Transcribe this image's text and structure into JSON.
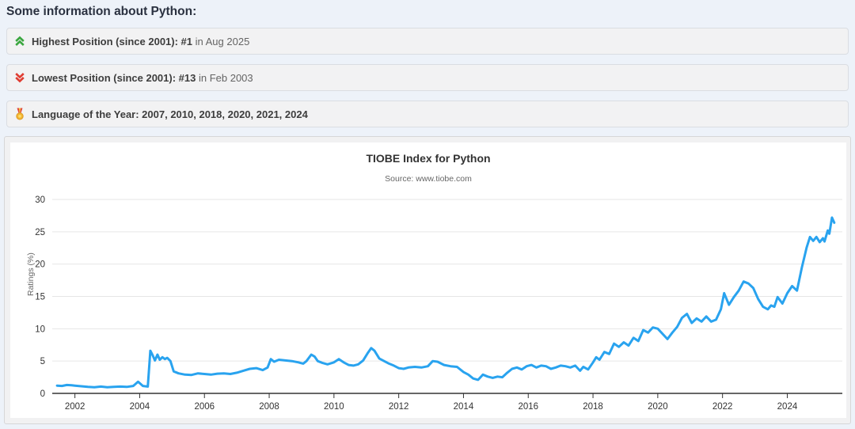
{
  "page": {
    "title": "Some information about Python:",
    "background": "#edf2f9"
  },
  "info_cards": [
    {
      "icon": "chevrons-up-icon",
      "icon_color": "#3aa63f",
      "bold": "Highest Position (since 2001): #1",
      "rest": " in Aug 2025"
    },
    {
      "icon": "chevrons-down-icon",
      "icon_color": "#e03c31",
      "bold": "Lowest Position (since 2001): #13",
      "rest": " in Feb 2003"
    },
    {
      "icon": "medal-icon",
      "icon_color": "#e0483e",
      "bold": "Language of the Year: 2007, 2010, 2018, 2020, 2021, 2024",
      "rest": ""
    }
  ],
  "chart_data": {
    "type": "line",
    "title": "TIOBE Index for Python",
    "subtitle": "Source: www.tiobe.com",
    "xlabel": "",
    "ylabel": "Ratings (%)",
    "xlim": [
      2001.3,
      2025.7
    ],
    "ylim": [
      0,
      30
    ],
    "yticks": [
      0,
      5,
      10,
      15,
      20,
      25,
      30
    ],
    "xticks": [
      2002,
      2004,
      2006,
      2008,
      2010,
      2012,
      2014,
      2016,
      2018,
      2020,
      2022,
      2024
    ],
    "grid": "horizontal",
    "legend": "none",
    "line_color": "#29a3ef",
    "axis_color": "#333333",
    "grid_color": "#e6e6e6",
    "series": [
      {
        "name": "Python",
        "color": "#29a3ef",
        "points": [
          [
            2001.45,
            1.2
          ],
          [
            2001.6,
            1.15
          ],
          [
            2001.75,
            1.3
          ],
          [
            2001.9,
            1.25
          ],
          [
            2002.0,
            1.2
          ],
          [
            2002.2,
            1.1
          ],
          [
            2002.4,
            1.0
          ],
          [
            2002.6,
            0.95
          ],
          [
            2002.8,
            1.05
          ],
          [
            2003.0,
            0.95
          ],
          [
            2003.2,
            1.0
          ],
          [
            2003.4,
            1.05
          ],
          [
            2003.6,
            1.0
          ],
          [
            2003.8,
            1.15
          ],
          [
            2003.95,
            1.8
          ],
          [
            2004.1,
            1.15
          ],
          [
            2004.25,
            1.05
          ],
          [
            2004.33,
            6.6
          ],
          [
            2004.4,
            5.9
          ],
          [
            2004.47,
            5.1
          ],
          [
            2004.55,
            6.0
          ],
          [
            2004.62,
            5.2
          ],
          [
            2004.7,
            5.6
          ],
          [
            2004.78,
            5.3
          ],
          [
            2004.85,
            5.5
          ],
          [
            2004.95,
            5.0
          ],
          [
            2005.05,
            3.4
          ],
          [
            2005.2,
            3.1
          ],
          [
            2005.4,
            2.9
          ],
          [
            2005.6,
            2.85
          ],
          [
            2005.8,
            3.1
          ],
          [
            2006.0,
            3.0
          ],
          [
            2006.2,
            2.9
          ],
          [
            2006.4,
            3.05
          ],
          [
            2006.6,
            3.1
          ],
          [
            2006.8,
            3.0
          ],
          [
            2007.0,
            3.2
          ],
          [
            2007.2,
            3.5
          ],
          [
            2007.4,
            3.8
          ],
          [
            2007.6,
            3.9
          ],
          [
            2007.8,
            3.6
          ],
          [
            2007.95,
            4.0
          ],
          [
            2008.05,
            5.3
          ],
          [
            2008.15,
            4.9
          ],
          [
            2008.3,
            5.2
          ],
          [
            2008.5,
            5.1
          ],
          [
            2008.7,
            5.0
          ],
          [
            2008.9,
            4.8
          ],
          [
            2009.05,
            4.6
          ],
          [
            2009.15,
            5.0
          ],
          [
            2009.3,
            6.0
          ],
          [
            2009.4,
            5.7
          ],
          [
            2009.5,
            5.0
          ],
          [
            2009.65,
            4.7
          ],
          [
            2009.8,
            4.5
          ],
          [
            2010.0,
            4.8
          ],
          [
            2010.15,
            5.3
          ],
          [
            2010.3,
            4.8
          ],
          [
            2010.45,
            4.4
          ],
          [
            2010.6,
            4.3
          ],
          [
            2010.75,
            4.5
          ],
          [
            2010.9,
            5.1
          ],
          [
            2011.05,
            6.3
          ],
          [
            2011.15,
            7.0
          ],
          [
            2011.25,
            6.6
          ],
          [
            2011.4,
            5.4
          ],
          [
            2011.55,
            5.0
          ],
          [
            2011.7,
            4.6
          ],
          [
            2011.85,
            4.3
          ],
          [
            2012.0,
            3.9
          ],
          [
            2012.15,
            3.8
          ],
          [
            2012.3,
            4.0
          ],
          [
            2012.5,
            4.1
          ],
          [
            2012.7,
            4.0
          ],
          [
            2012.9,
            4.2
          ],
          [
            2013.05,
            5.0
          ],
          [
            2013.2,
            4.9
          ],
          [
            2013.4,
            4.4
          ],
          [
            2013.6,
            4.2
          ],
          [
            2013.8,
            4.1
          ],
          [
            2014.0,
            3.3
          ],
          [
            2014.15,
            2.9
          ],
          [
            2014.3,
            2.3
          ],
          [
            2014.45,
            2.1
          ],
          [
            2014.6,
            2.9
          ],
          [
            2014.75,
            2.6
          ],
          [
            2014.9,
            2.4
          ],
          [
            2015.05,
            2.6
          ],
          [
            2015.2,
            2.5
          ],
          [
            2015.35,
            3.2
          ],
          [
            2015.5,
            3.8
          ],
          [
            2015.65,
            4.0
          ],
          [
            2015.8,
            3.7
          ],
          [
            2015.95,
            4.2
          ],
          [
            2016.1,
            4.4
          ],
          [
            2016.25,
            4.0
          ],
          [
            2016.4,
            4.3
          ],
          [
            2016.55,
            4.2
          ],
          [
            2016.7,
            3.8
          ],
          [
            2016.85,
            4.0
          ],
          [
            2017.0,
            4.3
          ],
          [
            2017.15,
            4.2
          ],
          [
            2017.3,
            4.0
          ],
          [
            2017.45,
            4.3
          ],
          [
            2017.6,
            3.5
          ],
          [
            2017.7,
            4.1
          ],
          [
            2017.85,
            3.7
          ],
          [
            2018.0,
            4.8
          ],
          [
            2018.1,
            5.6
          ],
          [
            2018.2,
            5.2
          ],
          [
            2018.35,
            6.4
          ],
          [
            2018.5,
            6.1
          ],
          [
            2018.65,
            7.7
          ],
          [
            2018.8,
            7.2
          ],
          [
            2018.95,
            7.9
          ],
          [
            2019.1,
            7.4
          ],
          [
            2019.25,
            8.6
          ],
          [
            2019.4,
            8.1
          ],
          [
            2019.55,
            9.8
          ],
          [
            2019.7,
            9.4
          ],
          [
            2019.85,
            10.2
          ],
          [
            2020.0,
            10.0
          ],
          [
            2020.15,
            9.2
          ],
          [
            2020.3,
            8.4
          ],
          [
            2020.45,
            9.4
          ],
          [
            2020.6,
            10.3
          ],
          [
            2020.75,
            11.7
          ],
          [
            2020.9,
            12.3
          ],
          [
            2021.05,
            10.9
          ],
          [
            2021.2,
            11.6
          ],
          [
            2021.35,
            11.1
          ],
          [
            2021.5,
            11.9
          ],
          [
            2021.65,
            11.1
          ],
          [
            2021.8,
            11.4
          ],
          [
            2021.95,
            13.0
          ],
          [
            2022.05,
            15.5
          ],
          [
            2022.2,
            13.7
          ],
          [
            2022.35,
            14.9
          ],
          [
            2022.5,
            15.9
          ],
          [
            2022.65,
            17.3
          ],
          [
            2022.8,
            17.0
          ],
          [
            2022.95,
            16.3
          ],
          [
            2023.1,
            14.6
          ],
          [
            2023.25,
            13.4
          ],
          [
            2023.4,
            13.0
          ],
          [
            2023.5,
            13.6
          ],
          [
            2023.6,
            13.4
          ],
          [
            2023.7,
            14.9
          ],
          [
            2023.85,
            13.9
          ],
          [
            2024.0,
            15.5
          ],
          [
            2024.15,
            16.6
          ],
          [
            2024.3,
            15.9
          ],
          [
            2024.45,
            19.5
          ],
          [
            2024.6,
            22.6
          ],
          [
            2024.7,
            24.2
          ],
          [
            2024.8,
            23.6
          ],
          [
            2024.9,
            24.2
          ],
          [
            2025.0,
            23.4
          ],
          [
            2025.1,
            24.0
          ],
          [
            2025.15,
            23.5
          ],
          [
            2025.25,
            25.2
          ],
          [
            2025.3,
            24.7
          ],
          [
            2025.38,
            27.2
          ],
          [
            2025.45,
            26.4
          ]
        ]
      }
    ]
  }
}
